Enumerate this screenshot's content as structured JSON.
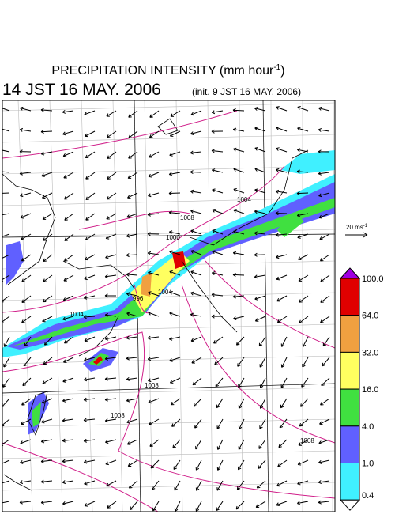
{
  "header": {
    "title": "PRECIPITATION INTENSITY (mm hour",
    "title_sup": "-1",
    "title_end": ")",
    "time": "14 JST 16 MAY. 2006",
    "init": "(init. 9 JST 16 MAY. 2006)"
  },
  "wind_legend": {
    "label": "20 ms",
    "sup": "-1"
  },
  "colorbar": {
    "labels": [
      "100.0",
      "64.0",
      "32.0",
      "16.0",
      "4.0",
      "1.0",
      "0.4"
    ],
    "colors": [
      "#a000e0",
      "#e00000",
      "#f0a040",
      "#ffff60",
      "#40e040",
      "#6060ff",
      "#40f0ff",
      "#ffffff"
    ]
  },
  "contours": {
    "labels": [
      "1008",
      "1004",
      "1000",
      "996",
      "1004",
      "1008",
      "1004",
      "1008",
      "1008"
    ]
  }
}
